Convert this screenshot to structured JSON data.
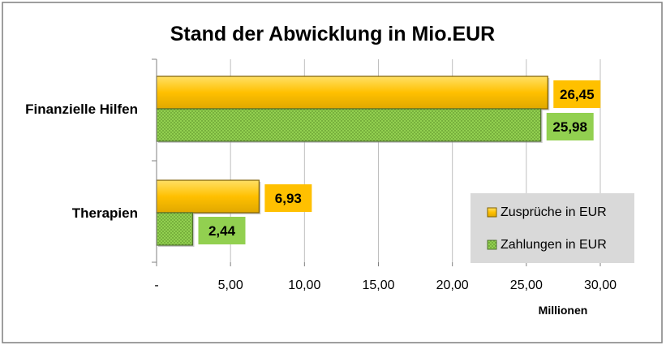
{
  "chart_data": {
    "type": "bar",
    "orientation": "horizontal",
    "title": "Stand der Abwicklung in Mio.EUR",
    "xlabel": "Millionen",
    "ylabel": "",
    "categories": [
      "Finanzielle Hilfen",
      "Therapien"
    ],
    "series": [
      {
        "name": "Zusprüche in EUR",
        "values": [
          26.45,
          6.93
        ],
        "value_labels": [
          "26,45",
          "6,93"
        ],
        "color": "#FFC000",
        "label_bg": "#FFC000",
        "pattern": "solid"
      },
      {
        "name": "Zahlungen in EUR",
        "values": [
          25.98,
          2.44
        ],
        "value_labels": [
          "25,98",
          "2,44"
        ],
        "color": "#92D050",
        "label_bg": "#92D050",
        "pattern": "dotted"
      }
    ],
    "xlim": [
      0,
      30
    ],
    "xticks": [
      0,
      5,
      10,
      15,
      20,
      25,
      30
    ],
    "xtick_labels": [
      "-",
      "5,00",
      "10,00",
      "15,00",
      "20,00",
      "25,00",
      "30,00"
    ],
    "grid": "vertical",
    "legend_position": "right"
  },
  "colors": {
    "frame": "#7F7F7F",
    "grid": "#BFBFBF",
    "legend_bg": "#D9D9D9",
    "bar_outline": "#7F6000"
  }
}
